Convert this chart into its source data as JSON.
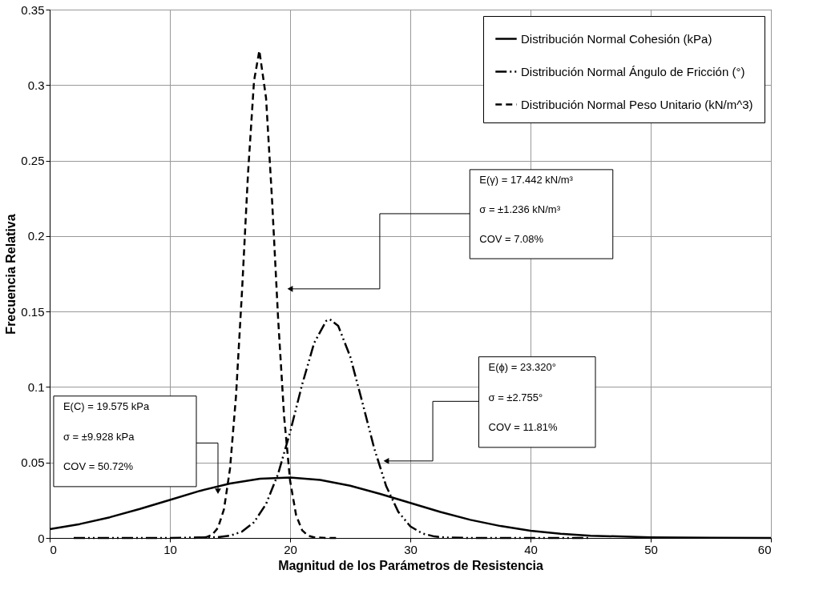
{
  "chart_data": {
    "type": "line",
    "xlabel": "Magnitud de los Parámetros de Resistencia",
    "ylabel": "Frecuencia Relativa",
    "xlim": [
      0,
      60
    ],
    "ylim": [
      0,
      0.35
    ],
    "xticks": [
      0,
      10,
      20,
      30,
      40,
      50,
      60
    ],
    "yticks": [
      0,
      0.05,
      0.1,
      0.15,
      0.2,
      0.25,
      0.3,
      0.35
    ],
    "grid": true,
    "legend": "top right",
    "series": [
      {
        "name": "Distribución Normal Cohesión (kPa)",
        "color": "#000000",
        "line_style": "solid",
        "x": [
          0,
          2.5,
          5,
          7.5,
          10,
          12.5,
          15,
          17.5,
          20,
          22.5,
          25,
          27.5,
          30,
          32.5,
          35,
          37.5,
          40,
          42.5,
          45,
          50,
          55,
          60
        ],
        "values": [
          0.0058,
          0.0092,
          0.0137,
          0.0192,
          0.0252,
          0.0312,
          0.0361,
          0.0393,
          0.0401,
          0.0385,
          0.0346,
          0.0292,
          0.0232,
          0.0172,
          0.012,
          0.0079,
          0.0048,
          0.0028,
          0.0015,
          0.0004,
          0.0001,
          0
        ]
      },
      {
        "name": "Distribución Normal Ángulo de Fricción (°)",
        "color": "#000000",
        "line_style": "dashdot",
        "x": [
          2,
          10,
          14,
          15,
          16,
          17,
          18,
          19,
          20,
          21,
          22,
          23,
          23.32,
          24,
          25,
          26,
          27,
          28,
          29,
          30,
          31,
          32,
          33,
          35,
          45
        ],
        "values": [
          0,
          0,
          0.0005,
          0.0015,
          0.0042,
          0.0104,
          0.0225,
          0.0424,
          0.0701,
          0.1016,
          0.1291,
          0.1438,
          0.1448,
          0.1405,
          0.1202,
          0.0902,
          0.0593,
          0.0342,
          0.0173,
          0.0077,
          0.003,
          0.001,
          0.0003,
          0,
          0
        ]
      },
      {
        "name": "Distribución Normal Peso Unitario (kN/m^3)",
        "color": "#000000",
        "line_style": "dashed",
        "x": [
          12,
          13,
          13.5,
          14,
          14.5,
          15,
          15.5,
          16,
          16.5,
          17,
          17.442,
          18,
          18.5,
          19,
          19.5,
          20,
          20.5,
          21,
          21.5,
          22,
          23,
          24
        ],
        "values": [
          0,
          0.0005,
          0.002,
          0.0067,
          0.019,
          0.0458,
          0.094,
          0.1634,
          0.2415,
          0.3028,
          0.3228,
          0.2915,
          0.2238,
          0.1458,
          0.0807,
          0.0379,
          0.0151,
          0.0051,
          0.0015,
          0.0004,
          0,
          0
        ]
      }
    ],
    "annotations": [
      "E(γ) = 17.442 kN/m³",
      "σ = ±1.236 kN/m³",
      "COV = 7.08%",
      "E(ϕ) = 23.320°",
      "σ = ±2.755°",
      "COV = 11.81%",
      "E(C) = 19.575 kPa",
      "σ = ±9.928 kPa",
      "COV = 50.72%"
    ]
  }
}
